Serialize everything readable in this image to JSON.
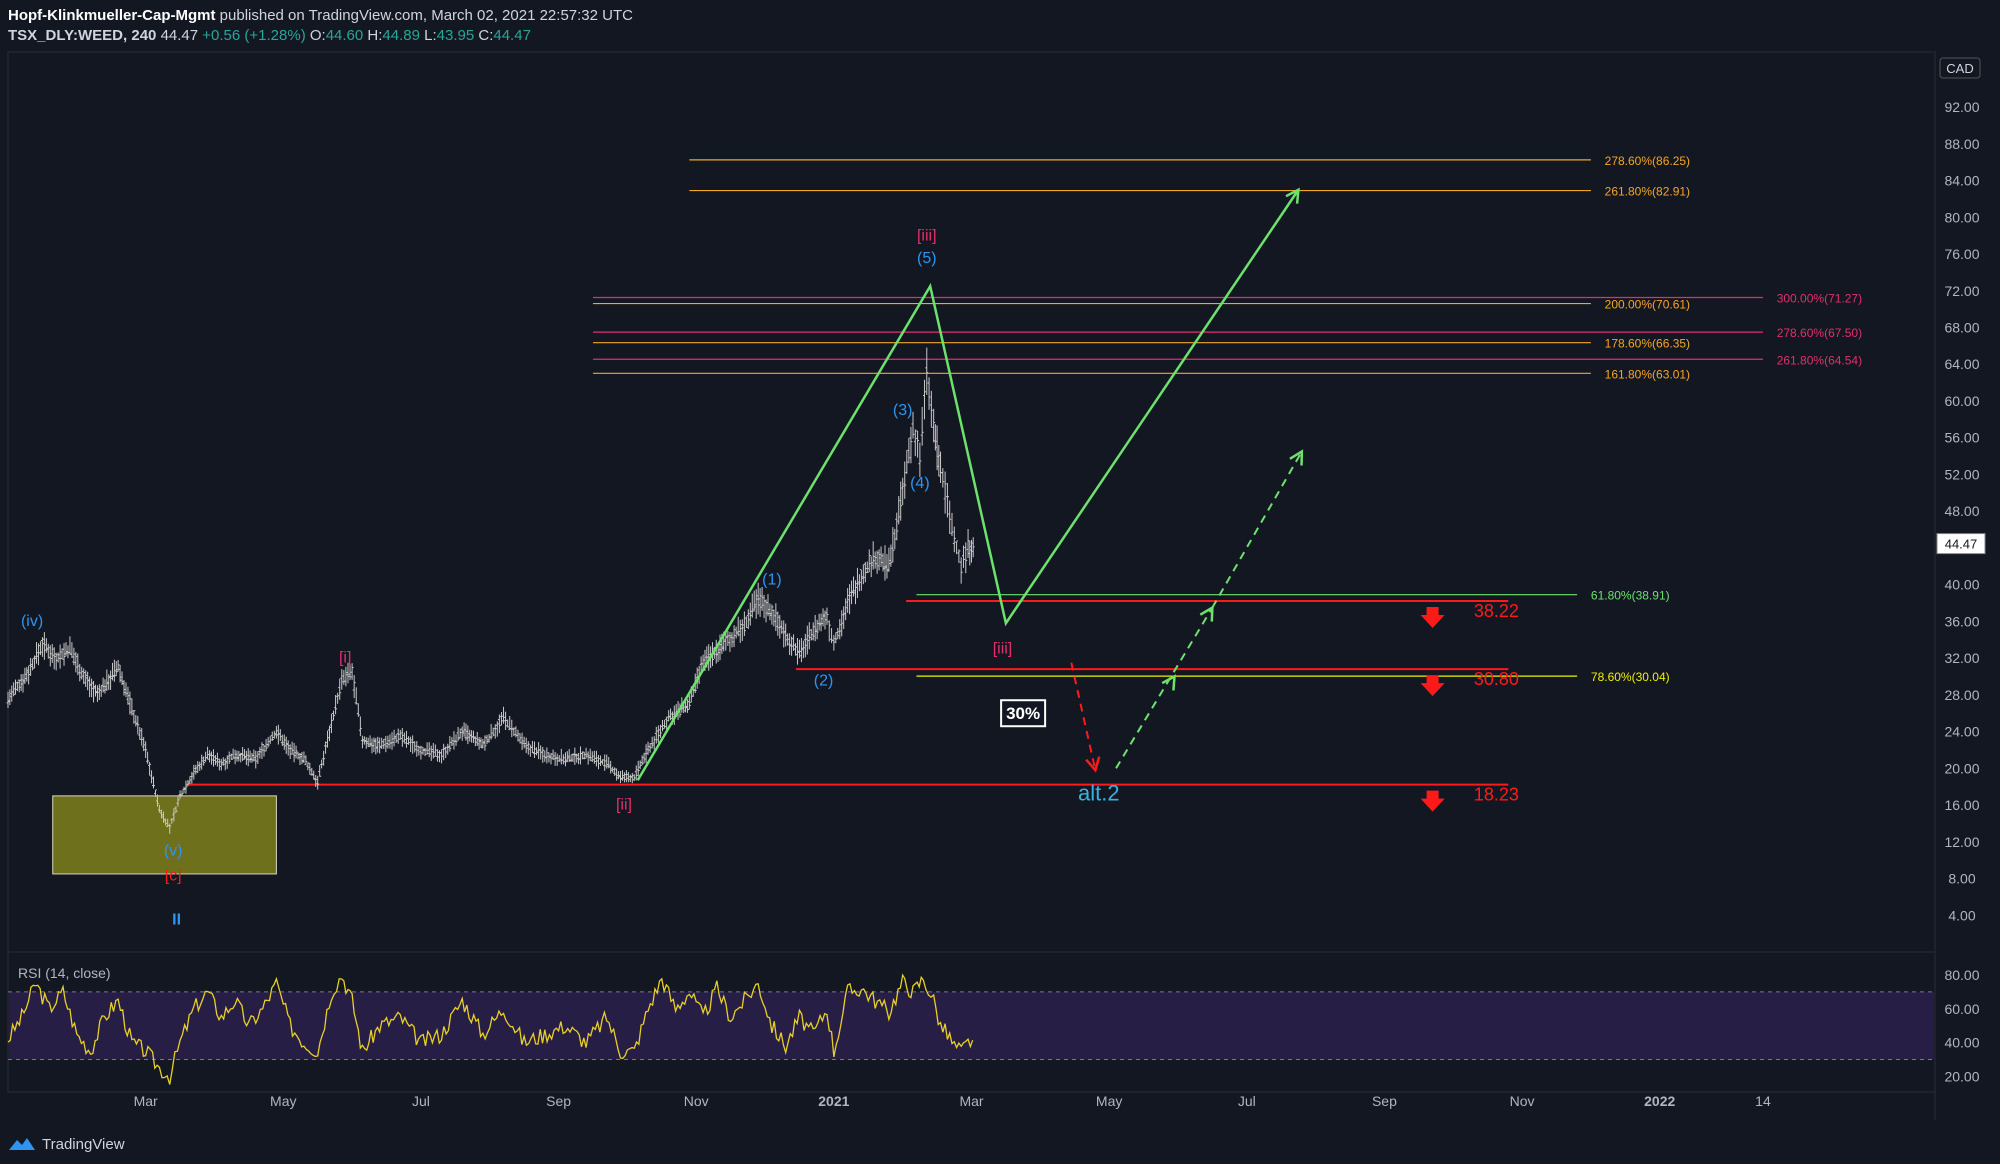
{
  "header": {
    "publisher": "Hopf-Klinkmueller-Cap-Mgmt",
    "published_text": "published on TradingView.com, March 02, 2021 22:57:32 UTC",
    "symbol": "TSX_DLY:WEED, 240",
    "last": "44.47",
    "change": "+0.56 (+1.28%)",
    "open_label": "O:",
    "open": "44.60",
    "high_label": "H:",
    "high": "44.89",
    "low_label": "L:",
    "low": "43.95",
    "close_label": "C:",
    "close": "44.47"
  },
  "footer": {
    "brand": "TradingView"
  },
  "colors": {
    "background": "#131722",
    "green": "#6ce26c",
    "red": "#ff1a1a",
    "orange": "#f5a623",
    "pink": "#e0306a",
    "blue": "#2d95f0",
    "yellow": "#f0f000",
    "rsi_line": "#e8d027",
    "rsi_band": "#2a1f4a",
    "price_bars": "#c8c8c8"
  },
  "chart_data": {
    "type": "line",
    "currency": "CAD",
    "last_price": 44.47,
    "price_axis": {
      "ylim": [
        0,
        98
      ],
      "ticks": [
        "4.00",
        "8.00",
        "12.00",
        "16.00",
        "20.00",
        "24.00",
        "28.00",
        "32.00",
        "36.00",
        "40.00",
        "44.00",
        "48.00",
        "52.00",
        "56.00",
        "60.00",
        "64.00",
        "68.00",
        "72.00",
        "76.00",
        "80.00",
        "84.00",
        "88.00",
        "92.00"
      ]
    },
    "time_axis": {
      "ticks": [
        {
          "label": "Mar",
          "t": 2.0
        },
        {
          "label": "May",
          "t": 4.0
        },
        {
          "label": "Jul",
          "t": 6.0
        },
        {
          "label": "Sep",
          "t": 8.0
        },
        {
          "label": "Nov",
          "t": 10.0
        },
        {
          "label": "2021",
          "t": 12.0,
          "bold": true
        },
        {
          "label": "Mar",
          "t": 14.0
        },
        {
          "label": "May",
          "t": 16.0
        },
        {
          "label": "Jul",
          "t": 18.0
        },
        {
          "label": "Sep",
          "t": 20.0
        },
        {
          "label": "Nov",
          "t": 22.0
        },
        {
          "label": "2022",
          "t": 24.0,
          "bold": true
        },
        {
          "label": "14",
          "t": 25.5
        }
      ],
      "xlim": [
        0,
        28.0
      ]
    },
    "price_path": [
      [
        0.0,
        27.5
      ],
      [
        0.3,
        30.5
      ],
      [
        0.5,
        33.5
      ],
      [
        0.7,
        32.0
      ],
      [
        0.9,
        33.0
      ],
      [
        1.1,
        30.0
      ],
      [
        1.3,
        28.0
      ],
      [
        1.6,
        31.0
      ],
      [
        1.8,
        26.5
      ],
      [
        2.0,
        22.0
      ],
      [
        2.2,
        15.5
      ],
      [
        2.35,
        13.5
      ],
      [
        2.5,
        17.0
      ],
      [
        2.7,
        19.5
      ],
      [
        2.9,
        21.5
      ],
      [
        3.1,
        20.5
      ],
      [
        3.3,
        21.5
      ],
      [
        3.6,
        21.0
      ],
      [
        3.9,
        24.0
      ],
      [
        4.1,
        22.0
      ],
      [
        4.3,
        21.0
      ],
      [
        4.5,
        18.5
      ],
      [
        4.7,
        25.0
      ],
      [
        4.85,
        29.5
      ],
      [
        5.0,
        30.5
      ],
      [
        5.15,
        23.0
      ],
      [
        5.4,
        22.5
      ],
      [
        5.7,
        23.5
      ],
      [
        6.0,
        22.0
      ],
      [
        6.3,
        21.5
      ],
      [
        6.6,
        24.0
      ],
      [
        6.9,
        22.5
      ],
      [
        7.2,
        25.5
      ],
      [
        7.5,
        22.5
      ],
      [
        7.8,
        21.5
      ],
      [
        8.1,
        21.0
      ],
      [
        8.4,
        21.5
      ],
      [
        8.7,
        20.5
      ],
      [
        8.9,
        19.0
      ],
      [
        9.1,
        19.0
      ],
      [
        9.3,
        22.0
      ],
      [
        9.6,
        25.5
      ],
      [
        9.9,
        27.0
      ],
      [
        10.1,
        31.5
      ],
      [
        10.4,
        33.5
      ],
      [
        10.7,
        35.5
      ],
      [
        10.9,
        38.5
      ],
      [
        11.1,
        37.0
      ],
      [
        11.3,
        34.5
      ],
      [
        11.5,
        32.5
      ],
      [
        11.7,
        35.0
      ],
      [
        11.9,
        36.5
      ],
      [
        12.0,
        33.5
      ],
      [
        12.2,
        38.0
      ],
      [
        12.4,
        41.0
      ],
      [
        12.6,
        43.0
      ],
      [
        12.8,
        42.0
      ],
      [
        13.0,
        50.0
      ],
      [
        13.15,
        57.0
      ],
      [
        13.25,
        54.0
      ],
      [
        13.35,
        63.0
      ],
      [
        13.45,
        57.0
      ],
      [
        13.55,
        52.5
      ],
      [
        13.65,
        49.0
      ],
      [
        13.75,
        45.0
      ],
      [
        13.85,
        42.0
      ],
      [
        13.95,
        44.0
      ],
      [
        14.05,
        44.47
      ]
    ],
    "fib_lines": [
      {
        "label": "278.60%(86.25)",
        "value": 86.25,
        "color": "orange",
        "t0": 9.9,
        "t1": 23.0,
        "label_t": 23.2
      },
      {
        "label": "261.80%(82.91)",
        "value": 82.91,
        "color": "orange",
        "t0": 9.9,
        "t1": 23.0,
        "label_t": 23.2
      },
      {
        "label": "300.00%(71.27)",
        "value": 71.27,
        "color": "pink",
        "t0": 8.5,
        "t1": 25.5,
        "label_t": 25.7
      },
      {
        "label": "200.00%(70.61)",
        "value": 70.61,
        "color": "orange",
        "t0": 8.5,
        "t1": 23.0,
        "label_t": 23.2
      },
      {
        "label": "278.60%(67.50)",
        "value": 67.5,
        "color": "pink",
        "t0": 8.5,
        "t1": 25.5,
        "label_t": 25.7
      },
      {
        "label": "178.60%(66.35)",
        "value": 66.35,
        "color": "orange",
        "t0": 8.5,
        "t1": 23.0,
        "label_t": 23.2
      },
      {
        "label": "261.80%(64.54)",
        "value": 64.54,
        "color": "pink",
        "t0": 8.5,
        "t1": 25.5,
        "label_t": 25.7
      },
      {
        "label": "161.80%(63.01)",
        "value": 63.01,
        "color": "orange",
        "t0": 8.5,
        "t1": 23.0,
        "label_t": 23.2
      },
      {
        "label": "61.80%(38.91)",
        "value": 38.91,
        "color": "green",
        "t0": 13.2,
        "t1": 22.8,
        "label_t": 23.0
      },
      {
        "label": "78.60%(30.04)",
        "value": 30.04,
        "color": "yellow",
        "t0": 13.2,
        "t1": 22.8,
        "label_t": 23.0
      }
    ],
    "support_lines": [
      {
        "value": 38.22,
        "label": "38.22",
        "t0": 13.05,
        "t1": 21.8
      },
      {
        "value": 30.8,
        "label": "30.80",
        "t0": 11.45,
        "t1": 21.8
      },
      {
        "value": 18.23,
        "label": "18.23",
        "t0": 2.6,
        "t1": 21.8
      }
    ],
    "target_box": {
      "t0": 0.65,
      "t1": 3.9,
      "y0": 8.5,
      "y1": 17.0
    },
    "main_path": [
      [
        9.15,
        18.7
      ],
      [
        13.4,
        72.5
      ],
      [
        14.5,
        35.8
      ],
      [
        18.75,
        83.0
      ]
    ],
    "alt_path": [
      [
        15.45,
        31.5
      ],
      [
        15.8,
        19.8
      ]
    ],
    "alt_path2": [
      [
        16.1,
        20.0
      ],
      [
        17.5,
        37.5
      ]
    ],
    "alt_path3": [
      [
        17.5,
        37.5
      ],
      [
        18.8,
        54.5
      ]
    ],
    "wave_labels": [
      {
        "text": "(iv)",
        "t": 0.35,
        "y": 35.5,
        "color": "blue"
      },
      {
        "text": "[i]",
        "t": 4.9,
        "y": 31.5,
        "color": "pink"
      },
      {
        "text": "(v)",
        "t": 2.4,
        "y": 10.5,
        "color": "blue"
      },
      {
        "text": "[c]",
        "t": 2.4,
        "y": 7.8,
        "color": "red"
      },
      {
        "text": "II",
        "t": 2.45,
        "y": 3.0,
        "color": "blue",
        "bold": true
      },
      {
        "text": "[ii]",
        "t": 8.95,
        "y": 15.5,
        "color": "pink"
      },
      {
        "text": "(1)",
        "t": 11.1,
        "y": 40.0,
        "color": "blue"
      },
      {
        "text": "(2)",
        "t": 11.85,
        "y": 29.0,
        "color": "blue"
      },
      {
        "text": "(3)",
        "t": 13.0,
        "y": 58.5,
        "color": "blue"
      },
      {
        "text": "(4)",
        "t": 13.25,
        "y": 50.5,
        "color": "blue"
      },
      {
        "text": "(5)",
        "t": 13.35,
        "y": 75.0,
        "color": "blue"
      },
      {
        "text": "[iii]",
        "t": 13.35,
        "y": 77.5,
        "color": "pink"
      },
      {
        "text": "[iii]",
        "t": 14.45,
        "y": 32.5,
        "color": "pink"
      },
      {
        "text": "alt.2",
        "t": 15.85,
        "y": 16.5,
        "color": "cyan",
        "big": true
      }
    ],
    "percent_box": {
      "text": "30%",
      "t": 14.75,
      "y": 26.0
    },
    "rsi": {
      "label": "RSI (14, close)",
      "ylim": [
        12,
        90
      ],
      "upper": 70,
      "lower": 30,
      "ticks": [
        "20.00",
        "40.00",
        "60.00",
        "80.00"
      ],
      "values": [
        [
          0.0,
          42
        ],
        [
          0.2,
          55
        ],
        [
          0.4,
          75
        ],
        [
          0.6,
          60
        ],
        [
          0.8,
          70
        ],
        [
          1.0,
          45
        ],
        [
          1.2,
          35
        ],
        [
          1.4,
          55
        ],
        [
          1.6,
          65
        ],
        [
          1.8,
          40
        ],
        [
          2.0,
          35
        ],
        [
          2.2,
          25
        ],
        [
          2.35,
          20
        ],
        [
          2.5,
          40
        ],
        [
          2.7,
          60
        ],
        [
          2.9,
          70
        ],
        [
          3.1,
          55
        ],
        [
          3.3,
          65
        ],
        [
          3.5,
          50
        ],
        [
          3.7,
          60
        ],
        [
          3.9,
          75
        ],
        [
          4.1,
          50
        ],
        [
          4.3,
          40
        ],
        [
          4.5,
          35
        ],
        [
          4.7,
          70
        ],
        [
          4.85,
          80
        ],
        [
          5.0,
          65
        ],
        [
          5.15,
          35
        ],
        [
          5.4,
          50
        ],
        [
          5.7,
          55
        ],
        [
          6.0,
          40
        ],
        [
          6.3,
          45
        ],
        [
          6.6,
          65
        ],
        [
          6.9,
          45
        ],
        [
          7.2,
          60
        ],
        [
          7.5,
          40
        ],
        [
          7.8,
          45
        ],
        [
          8.1,
          50
        ],
        [
          8.4,
          40
        ],
        [
          8.7,
          55
        ],
        [
          8.9,
          35
        ],
        [
          9.1,
          35
        ],
        [
          9.3,
          60
        ],
        [
          9.5,
          78
        ],
        [
          9.7,
          60
        ],
        [
          9.9,
          70
        ],
        [
          10.1,
          55
        ],
        [
          10.3,
          72
        ],
        [
          10.5,
          55
        ],
        [
          10.7,
          65
        ],
        [
          10.9,
          75
        ],
        [
          11.1,
          50
        ],
        [
          11.3,
          38
        ],
        [
          11.5,
          55
        ],
        [
          11.7,
          45
        ],
        [
          11.9,
          60
        ],
        [
          12.0,
          35
        ],
        [
          12.2,
          70
        ],
        [
          12.4,
          72
        ],
        [
          12.6,
          65
        ],
        [
          12.8,
          58
        ],
        [
          13.0,
          76
        ],
        [
          13.15,
          70
        ],
        [
          13.3,
          78
        ],
        [
          13.45,
          65
        ],
        [
          13.55,
          50
        ],
        [
          13.65,
          45
        ],
        [
          13.75,
          38
        ],
        [
          13.85,
          35
        ],
        [
          13.95,
          40
        ],
        [
          14.05,
          43
        ]
      ]
    }
  }
}
